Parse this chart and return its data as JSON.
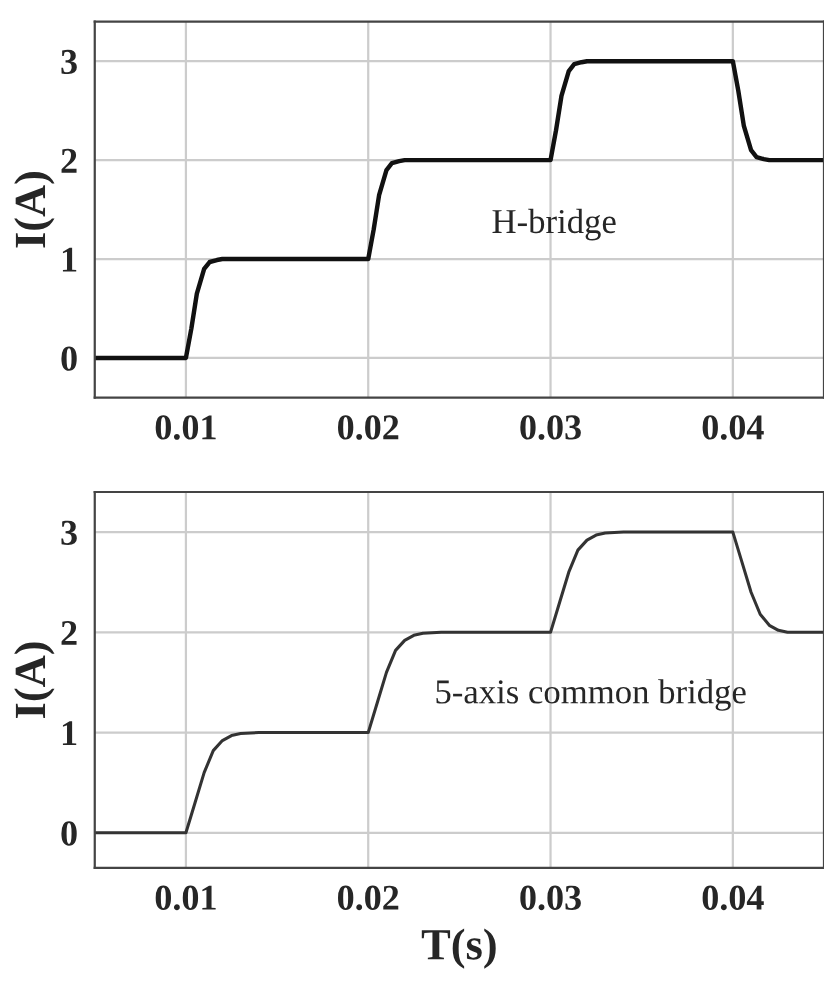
{
  "chart_data": [
    {
      "type": "line",
      "ylabel": "I(A)",
      "annotations": [
        "H-bridge"
      ],
      "x": [
        0.005,
        0.01,
        0.0103,
        0.0106,
        0.011,
        0.0113,
        0.0117,
        0.012,
        0.02,
        0.0203,
        0.0206,
        0.021,
        0.0213,
        0.0217,
        0.022,
        0.03,
        0.0303,
        0.0306,
        0.031,
        0.0313,
        0.0317,
        0.032,
        0.04,
        0.0403,
        0.0406,
        0.041,
        0.0413,
        0.0417,
        0.042,
        0.045
      ],
      "series": [
        {
          "color": "#111111",
          "values": [
            0,
            0,
            0.3,
            0.65,
            0.9,
            0.97,
            0.99,
            1,
            1,
            1.3,
            1.65,
            1.9,
            1.97,
            1.99,
            2,
            2,
            2.3,
            2.65,
            2.9,
            2.97,
            2.99,
            3,
            3,
            2.7,
            2.35,
            2.1,
            2.03,
            2.01,
            2,
            2
          ]
        }
      ],
      "xlim": [
        0.005,
        0.045
      ],
      "ylim": [
        -0.4,
        3.4
      ],
      "xticks": [
        0.01,
        0.02,
        0.03,
        0.04
      ],
      "yticks": [
        0,
        1,
        2,
        3
      ],
      "grid": true
    },
    {
      "type": "line",
      "xlabel": "T(s)",
      "ylabel": "I(A)",
      "annotations": [
        "5-axis common bridge"
      ],
      "x": [
        0.005,
        0.01,
        0.0105,
        0.011,
        0.0115,
        0.012,
        0.0125,
        0.013,
        0.014,
        0.02,
        0.0205,
        0.021,
        0.0215,
        0.022,
        0.0225,
        0.023,
        0.024,
        0.03,
        0.0305,
        0.031,
        0.0315,
        0.032,
        0.0325,
        0.033,
        0.034,
        0.04,
        0.0405,
        0.041,
        0.0415,
        0.042,
        0.0425,
        0.043,
        0.045
      ],
      "series": [
        {
          "color": "#333333",
          "values": [
            0,
            0,
            0.3,
            0.6,
            0.82,
            0.92,
            0.97,
            0.99,
            1,
            1,
            1.3,
            1.6,
            1.82,
            1.92,
            1.97,
            1.99,
            2,
            2,
            2.3,
            2.6,
            2.82,
            2.92,
            2.97,
            2.99,
            3,
            3,
            2.7,
            2.4,
            2.18,
            2.07,
            2.02,
            2.0,
            2
          ]
        }
      ],
      "xlim": [
        0.005,
        0.045
      ],
      "ylim": [
        -0.35,
        3.4
      ],
      "xticks": [
        0.01,
        0.02,
        0.03,
        0.04
      ],
      "yticks": [
        0,
        1,
        2,
        3
      ],
      "grid": true
    }
  ]
}
